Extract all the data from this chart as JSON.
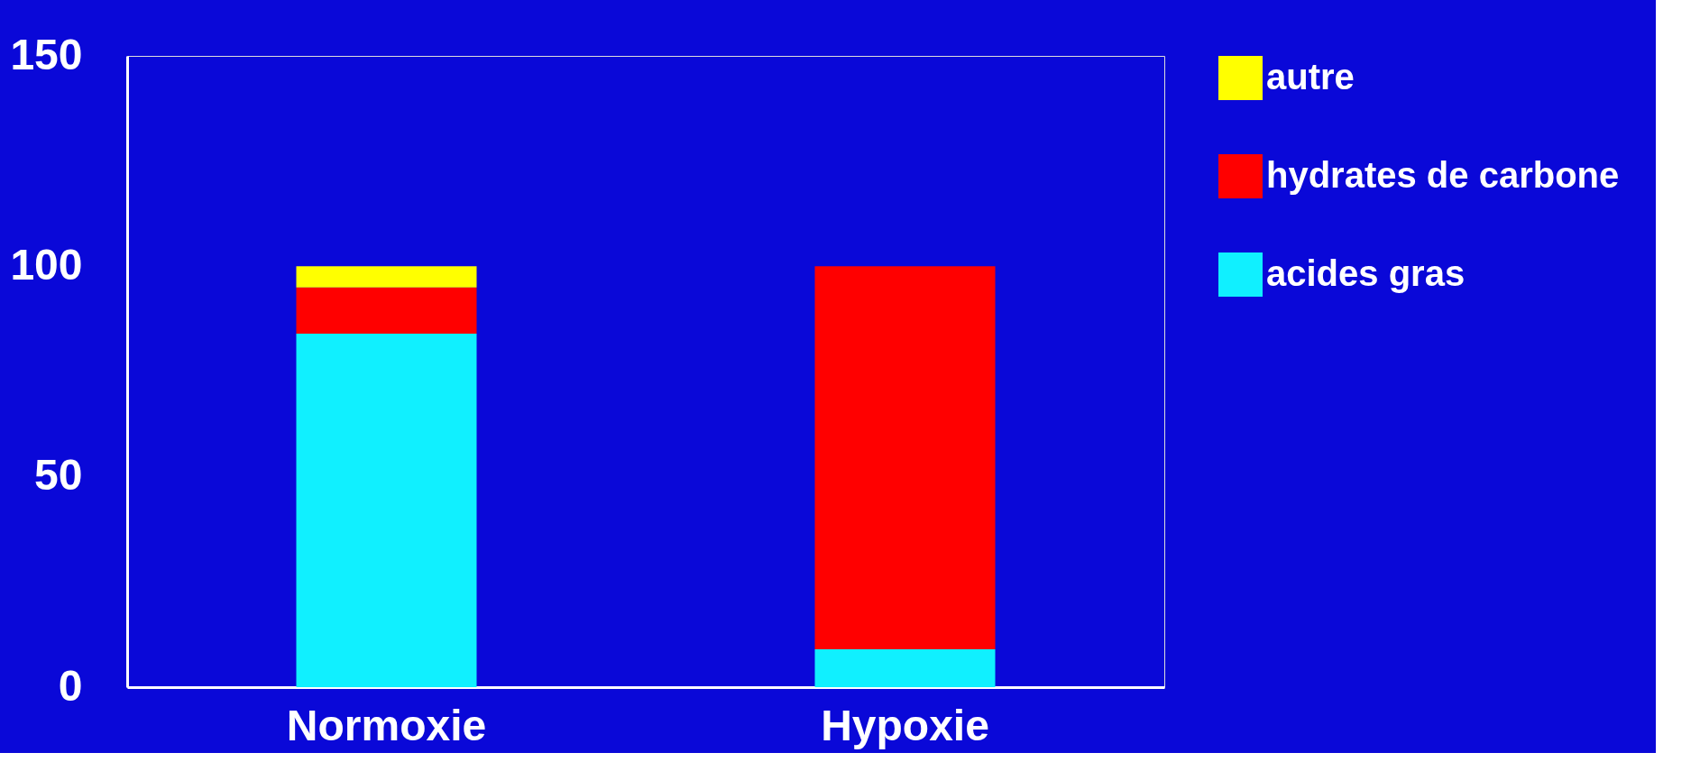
{
  "chart_data": {
    "type": "bar",
    "stacked": true,
    "categories": [
      "Normoxie",
      "Hypoxie"
    ],
    "series": [
      {
        "name": "acides gras",
        "color": "#10f0ff",
        "values": [
          84,
          9
        ]
      },
      {
        "name": "hydrates de carbone",
        "color": "#ff0000",
        "values": [
          11,
          91
        ]
      },
      {
        "name": "autre",
        "color": "#ffff00",
        "values": [
          5,
          0
        ]
      }
    ],
    "ylim": [
      0,
      150
    ],
    "yticks": [
      0,
      50,
      100,
      150
    ],
    "grid": false,
    "legend": "right"
  }
}
